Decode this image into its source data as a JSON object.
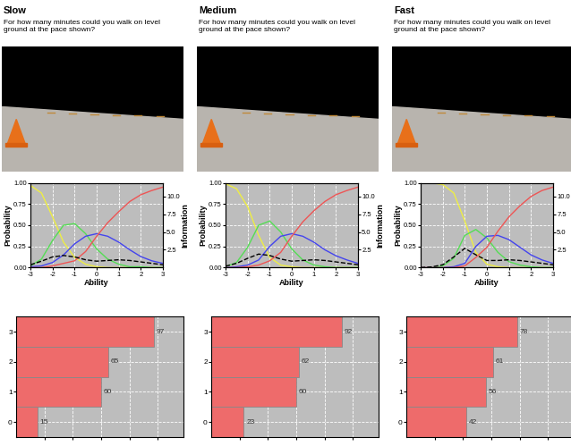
{
  "chart_data": [
    {
      "type": "line",
      "title": "Slow",
      "subtitle": "For how many minutes could you walk on level ground at the pace shown?",
      "xlabel": "Ability",
      "ylabel": "Probability",
      "y2label": "Information",
      "x": [
        -3,
        -2.5,
        -2,
        -1.5,
        -1,
        -0.5,
        0,
        0.5,
        1,
        1.5,
        2,
        2.5,
        3
      ],
      "xlim": [
        -3,
        3
      ],
      "xticks": [
        -3,
        -2,
        -1,
        0,
        1,
        2,
        3
      ],
      "ylim": [
        0,
        1
      ],
      "yticks": [
        {
          "value": 0,
          "label": "0.00"
        },
        {
          "value": 0.25,
          "label": "0.25"
        },
        {
          "value": 0.5,
          "label": "0.50"
        },
        {
          "value": 0.75,
          "label": "0.75"
        },
        {
          "value": 1,
          "label": "1.00"
        }
      ],
      "y2lim": [
        0,
        11.9
      ],
      "y2ticks": [
        {
          "value": 2.5,
          "label": "2.5"
        },
        {
          "value": 5,
          "label": "5.0"
        },
        {
          "value": 7.5,
          "label": "7.5"
        },
        {
          "value": 10,
          "label": "10.0"
        }
      ],
      "grid": true,
      "series": [
        {
          "color": "#eeee44",
          "line_style": "solid",
          "values": [
            0.97,
            0.88,
            0.6,
            0.3,
            0.12,
            0.04,
            0.01,
            0.0,
            0.0,
            0.0,
            0.0,
            0.0,
            0.0
          ]
        },
        {
          "color": "#55dd55",
          "line_style": "solid",
          "values": [
            0.02,
            0.1,
            0.32,
            0.5,
            0.52,
            0.4,
            0.22,
            0.1,
            0.04,
            0.01,
            0.01,
            0.0,
            0.0
          ]
        },
        {
          "color": "#4444ee",
          "line_style": "solid",
          "values": [
            0.01,
            0.02,
            0.06,
            0.15,
            0.28,
            0.37,
            0.4,
            0.37,
            0.3,
            0.21,
            0.13,
            0.08,
            0.05
          ]
        },
        {
          "color": "#ee5555",
          "line_style": "solid",
          "values": [
            0.0,
            0.0,
            0.02,
            0.05,
            0.08,
            0.19,
            0.37,
            0.53,
            0.66,
            0.78,
            0.86,
            0.91,
            0.95
          ]
        },
        {
          "color": "#000000",
          "line_style": "dashed",
          "axis": "y2",
          "values": [
            0.4,
            0.9,
            1.5,
            1.7,
            1.5,
            1.1,
            0.9,
            1.0,
            1.1,
            1.0,
            0.8,
            0.6,
            0.4
          ]
        }
      ]
    },
    {
      "type": "bar",
      "orientation": "horizontal",
      "categories": [
        "0",
        "1",
        "2",
        "3"
      ],
      "values": [
        15,
        60,
        65,
        97
      ],
      "color": "#ee6b6b",
      "xlim": [
        0,
        118
      ],
      "xticks": [
        20,
        40,
        60,
        80,
        100
      ],
      "grid": true,
      "data_labels": true,
      "tick_labels": "y"
    },
    {
      "type": "line",
      "title": "Medium",
      "subtitle": "For how many minutes could you walk on level ground at the pace shown?",
      "xlabel": "Ability",
      "ylabel": "Probability",
      "y2label": "Information",
      "x": [
        -3,
        -2.5,
        -2,
        -1.5,
        -1,
        -0.5,
        0,
        0.5,
        1,
        1.5,
        2,
        2.5,
        3
      ],
      "xlim": [
        -3,
        3
      ],
      "xticks": [
        -3,
        -2,
        -1,
        0,
        1,
        2,
        3
      ],
      "ylim": [
        0,
        1
      ],
      "yticks": [
        {
          "value": 0,
          "label": "0.00"
        },
        {
          "value": 0.25,
          "label": "0.25"
        },
        {
          "value": 0.5,
          "label": "0.50"
        },
        {
          "value": 0.75,
          "label": "0.75"
        },
        {
          "value": 1,
          "label": "1.00"
        }
      ],
      "y2lim": [
        0,
        11.9
      ],
      "y2ticks": [
        {
          "value": 2.5,
          "label": "2.5"
        },
        {
          "value": 5,
          "label": "5.0"
        },
        {
          "value": 7.5,
          "label": "7.5"
        },
        {
          "value": 10,
          "label": "10.0"
        }
      ],
      "grid": true,
      "series": [
        {
          "color": "#eeee44",
          "line_style": "solid",
          "values": [
            0.99,
            0.93,
            0.72,
            0.38,
            0.12,
            0.03,
            0.01,
            0.0,
            0.0,
            0.0,
            0.0,
            0.0,
            0.0
          ]
        },
        {
          "color": "#55dd55",
          "line_style": "solid",
          "values": [
            0.01,
            0.06,
            0.24,
            0.5,
            0.55,
            0.42,
            0.22,
            0.09,
            0.03,
            0.01,
            0.0,
            0.0,
            0.0
          ]
        },
        {
          "color": "#4444ee",
          "line_style": "solid",
          "values": [
            0.0,
            0.01,
            0.03,
            0.09,
            0.25,
            0.37,
            0.4,
            0.37,
            0.3,
            0.21,
            0.14,
            0.09,
            0.05
          ]
        },
        {
          "color": "#ee5555",
          "line_style": "solid",
          "values": [
            0.0,
            0.0,
            0.01,
            0.03,
            0.08,
            0.18,
            0.37,
            0.54,
            0.67,
            0.78,
            0.86,
            0.91,
            0.95
          ]
        },
        {
          "color": "#000000",
          "line_style": "dashed",
          "axis": "y2",
          "values": [
            0.2,
            0.6,
            1.3,
            1.9,
            1.7,
            1.2,
            0.9,
            1.0,
            1.1,
            1.0,
            0.8,
            0.6,
            0.4
          ]
        }
      ]
    },
    {
      "type": "bar",
      "orientation": "horizontal",
      "categories": [
        "0",
        "1",
        "2",
        "3"
      ],
      "values": [
        23,
        60,
        62,
        92
      ],
      "color": "#ee6b6b",
      "xlim": [
        0,
        118
      ],
      "xticks": [
        20,
        40,
        60,
        80,
        100
      ],
      "grid": true,
      "data_labels": true,
      "tick_labels": "y"
    },
    {
      "type": "line",
      "title": "Fast",
      "subtitle": "For how many minutes could you walk on level ground at the pace shown?",
      "xlabel": "Ability",
      "ylabel": "Probability",
      "y2label": "Information",
      "x": [
        -3,
        -2.5,
        -2,
        -1.5,
        -1,
        -0.5,
        0,
        0.5,
        1,
        1.5,
        2,
        2.5,
        3
      ],
      "xlim": [
        -3,
        3
      ],
      "xticks": [
        -3,
        -2,
        -1,
        0,
        1,
        2,
        3
      ],
      "ylim": [
        0,
        1
      ],
      "yticks": [
        {
          "value": 0,
          "label": "0.00"
        },
        {
          "value": 0.25,
          "label": "0.25"
        },
        {
          "value": 0.5,
          "label": "0.50"
        },
        {
          "value": 0.75,
          "label": "0.75"
        },
        {
          "value": 1,
          "label": "1.00"
        }
      ],
      "y2lim": [
        0,
        11.9
      ],
      "y2ticks": [
        {
          "value": 2.5,
          "label": "2.5"
        },
        {
          "value": 5,
          "label": "5.0"
        },
        {
          "value": 7.5,
          "label": "7.5"
        },
        {
          "value": 10,
          "label": "10.0"
        }
      ],
      "grid": true,
      "series": [
        {
          "color": "#eeee44",
          "line_style": "solid",
          "values": [
            1.0,
            1.0,
            0.98,
            0.88,
            0.55,
            0.18,
            0.04,
            0.01,
            0.0,
            0.0,
            0.0,
            0.0,
            0.0
          ]
        },
        {
          "color": "#55dd55",
          "line_style": "solid",
          "values": [
            0.0,
            0.0,
            0.02,
            0.11,
            0.38,
            0.45,
            0.35,
            0.18,
            0.07,
            0.03,
            0.01,
            0.0,
            0.0
          ]
        },
        {
          "color": "#4444ee",
          "line_style": "solid",
          "values": [
            0.0,
            0.0,
            0.0,
            0.01,
            0.05,
            0.25,
            0.37,
            0.38,
            0.33,
            0.24,
            0.15,
            0.09,
            0.05
          ]
        },
        {
          "color": "#ee5555",
          "line_style": "solid",
          "values": [
            0.0,
            0.0,
            0.0,
            0.0,
            0.02,
            0.12,
            0.24,
            0.43,
            0.6,
            0.73,
            0.84,
            0.91,
            0.95
          ]
        },
        {
          "color": "#000000",
          "line_style": "dashed",
          "axis": "y2",
          "values": [
            0.0,
            0.1,
            0.4,
            1.5,
            2.7,
            1.8,
            1.0,
            1.0,
            1.1,
            1.0,
            0.8,
            0.6,
            0.4
          ]
        }
      ]
    },
    {
      "type": "bar",
      "orientation": "horizontal",
      "categories": [
        "0",
        "1",
        "2",
        "3"
      ],
      "values": [
        42,
        56,
        61,
        78
      ],
      "color": "#ee6b6b",
      "xlim": [
        0,
        118
      ],
      "xticks": [
        20,
        40,
        60,
        80,
        100
      ],
      "grid": true,
      "data_labels": true,
      "tick_labels": "y"
    }
  ]
}
